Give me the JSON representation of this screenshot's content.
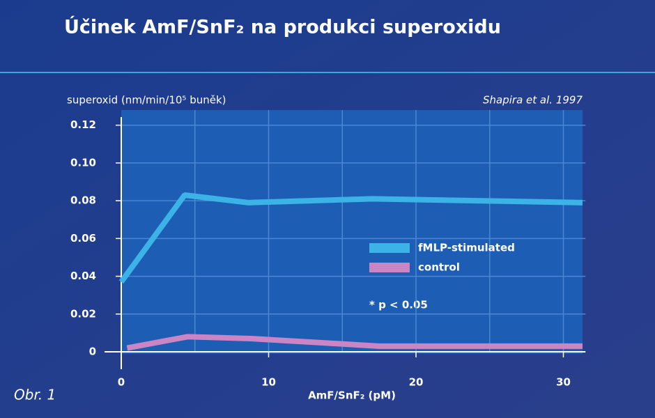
{
  "chart_data": {
    "type": "line",
    "title": "Účinek AmF/SnF₂ na produkci superoxidu",
    "y_label": "superoxid (nm/min/10⁵ buněk)",
    "source": "Shapira et al. 1997",
    "x_label": "AmF/SnF₂ (pM)",
    "annotation": "* p < 0.05",
    "figure_label": "Obr. 1",
    "series": [
      {
        "name": "fMLP-stimulated",
        "color": "#3bb3e6",
        "x": [
          0,
          4.3,
          8.6,
          17,
          31.3
        ],
        "values": [
          0.037,
          0.083,
          0.079,
          0.081,
          0.079
        ]
      },
      {
        "name": "control",
        "color": "#c985c4",
        "x": [
          0.4,
          4.5,
          8.8,
          17.5,
          31.3
        ],
        "values": [
          0.002,
          0.008,
          0.007,
          0.003,
          0.003
        ]
      }
    ],
    "xlim": [
      0,
      31.5
    ],
    "xticks": [
      0,
      10,
      20,
      30
    ],
    "x_minor_ticks": [
      5,
      15,
      25
    ],
    "ylim": [
      0,
      0.128
    ],
    "yticks": [
      0,
      0.02,
      0.04,
      0.06,
      0.08,
      {
        "value": 0.1,
        "label": "0.10"
      },
      0.12
    ],
    "grid": true
  }
}
